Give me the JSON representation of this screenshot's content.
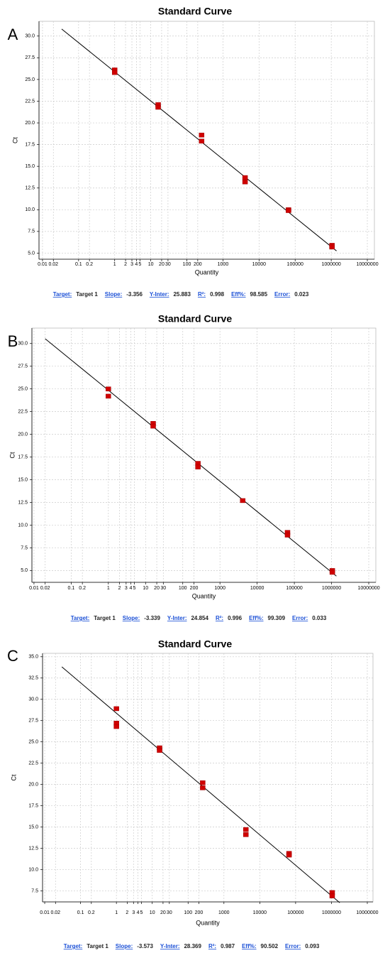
{
  "chart_data": [
    {
      "type": "scatter",
      "panel_label": "A",
      "title": "Standard Curve",
      "x_label": "Quantity",
      "y_label": "Ct",
      "xscale": "log",
      "grid": true,
      "xlim": [
        0.008,
        15700000
      ],
      "ylim": [
        4.3,
        31.7
      ],
      "xticks": [
        0.01,
        0.02,
        0.1,
        0.2,
        1,
        2,
        3,
        4,
        5,
        10,
        20,
        30,
        100,
        200,
        1000,
        10000,
        100000,
        1000000,
        10000000
      ],
      "yticks": [
        {
          "value": 5,
          "label": "5.0"
        },
        {
          "value": 7.5,
          "label": "7.5"
        },
        {
          "value": 10,
          "label": "10.0"
        },
        {
          "value": 12.5,
          "label": "12.5"
        },
        {
          "value": 15,
          "label": "15.0"
        },
        {
          "value": 17.5,
          "label": "17.5"
        },
        {
          "value": 20,
          "label": "20.0"
        },
        {
          "value": 22.5,
          "label": "22.5"
        },
        {
          "value": 25,
          "label": "25.0"
        },
        {
          "value": 27.5,
          "label": "27.5"
        },
        {
          "value": 30,
          "label": "30.0"
        }
      ],
      "series": [
        {
          "color": "#d00000",
          "x": [
            1,
            1,
            16,
            16,
            256,
            256,
            4096,
            4096,
            65536,
            65536,
            1048576,
            1048576
          ],
          "values": [
            26.1,
            25.8,
            22.1,
            21.8,
            18.6,
            17.9,
            13.7,
            13.2,
            10.0,
            9.9,
            5.9,
            5.7
          ]
        }
      ],
      "fit_x": [
        0.034,
        1400000
      ],
      "stats": {
        "target_label": "Target:",
        "target": "Target 1",
        "items": [
          {
            "label": "Slope:",
            "value": -3.356
          },
          {
            "label": "Y-Inter:",
            "value": 25.883
          },
          {
            "label": "R²:",
            "value": 0.998
          },
          {
            "label": "Eff%:",
            "value": 98.585
          },
          {
            "label": "Error:",
            "value": 0.023
          }
        ]
      }
    },
    {
      "type": "scatter",
      "panel_label": "B",
      "title": "Standard Curve",
      "x_label": "Quantity",
      "y_label": "Ct",
      "xscale": "log",
      "grid": true,
      "xlim": [
        0.0088,
        15500000
      ],
      "ylim": [
        3.7,
        31.7
      ],
      "xticks": [
        0.01,
        0.02,
        0.1,
        0.2,
        1,
        2,
        3,
        4,
        5,
        10,
        20,
        30,
        100,
        200,
        1000,
        10000,
        100000,
        1000000,
        10000000
      ],
      "yticks": [
        {
          "value": 5,
          "label": "5.0"
        },
        {
          "value": 7.5,
          "label": "7.5"
        },
        {
          "value": 10,
          "label": "10.0"
        },
        {
          "value": 12.5,
          "label": "12.5"
        },
        {
          "value": 15,
          "label": "15.0"
        },
        {
          "value": 17.5,
          "label": "17.5"
        },
        {
          "value": 20,
          "label": "20.0"
        },
        {
          "value": 22.5,
          "label": "22.5"
        },
        {
          "value": 25,
          "label": "25.0"
        },
        {
          "value": 27.5,
          "label": "27.5"
        },
        {
          "value": 30,
          "label": "30.0"
        }
      ],
      "series": [
        {
          "color": "#d00000",
          "x": [
            1,
            1,
            16,
            16,
            256,
            256,
            4096,
            65536,
            65536,
            1048576,
            1048576
          ],
          "values": [
            25.0,
            24.2,
            21.2,
            20.9,
            16.8,
            16.4,
            12.7,
            9.2,
            8.9,
            5.0,
            4.8
          ]
        }
      ],
      "fit_x": [
        0.02,
        1350000
      ],
      "stats": {
        "target_label": "Target:",
        "target": "Target 1",
        "items": [
          {
            "label": "Slope:",
            "value": -3.339
          },
          {
            "label": "Y-Inter:",
            "value": 24.854
          },
          {
            "label": "R²:",
            "value": 0.996
          },
          {
            "label": "Eff%:",
            "value": 99.309
          },
          {
            "label": "Error:",
            "value": 0.033
          }
        ]
      }
    },
    {
      "type": "scatter",
      "panel_label": "C",
      "title": "Standard Curve",
      "x_label": "Quantity",
      "y_label": "Ct",
      "xscale": "log",
      "grid": true,
      "xlim": [
        0.0087,
        14400000
      ],
      "ylim": [
        6.2,
        35.4
      ],
      "xticks": [
        0.01,
        0.02,
        0.1,
        0.2,
        1,
        2,
        3,
        4,
        5,
        10,
        20,
        30,
        100,
        200,
        1000,
        10000,
        100000,
        1000000,
        10000000
      ],
      "yticks": [
        {
          "value": 7.5,
          "label": "7.5"
        },
        {
          "value": 10,
          "label": "10.0"
        },
        {
          "value": 12.5,
          "label": "12.5"
        },
        {
          "value": 15,
          "label": "15.0"
        },
        {
          "value": 17.5,
          "label": "17.5"
        },
        {
          "value": 20,
          "label": "20.0"
        },
        {
          "value": 22.5,
          "label": "22.5"
        },
        {
          "value": 25,
          "label": "25.0"
        },
        {
          "value": 27.5,
          "label": "27.5"
        },
        {
          "value": 30,
          "label": "30.0"
        },
        {
          "value": 32.5,
          "label": "32.5"
        },
        {
          "value": 35,
          "label": "35.0"
        }
      ],
      "series": [
        {
          "color": "#d00000",
          "x": [
            1,
            1,
            1,
            16,
            16,
            256,
            256,
            4096,
            4096,
            65536,
            65536,
            1048576,
            1048576
          ],
          "values": [
            28.9,
            27.2,
            26.8,
            24.3,
            24.0,
            20.2,
            19.6,
            14.7,
            14.1,
            11.9,
            11.7,
            7.3,
            6.9
          ]
        }
      ],
      "fit_x": [
        0.03,
        1700000
      ],
      "stats": {
        "target_label": "Target:",
        "target": "Target 1",
        "items": [
          {
            "label": "Slope:",
            "value": -3.573
          },
          {
            "label": "Y-Inter:",
            "value": 28.369
          },
          {
            "label": "R²:",
            "value": 0.987
          },
          {
            "label": "Eff%:",
            "value": 90.502
          },
          {
            "label": "Error:",
            "value": 0.093
          }
        ]
      }
    }
  ]
}
